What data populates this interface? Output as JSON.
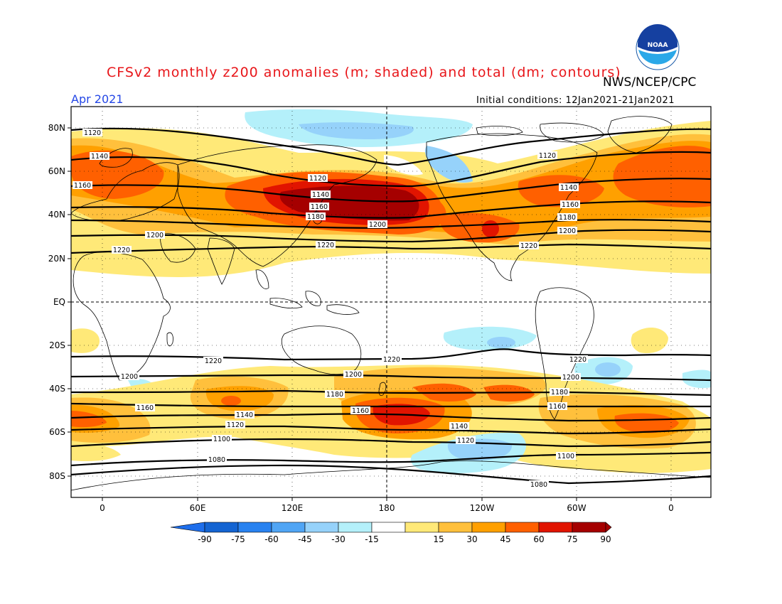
{
  "header": {
    "title": "CFSv2 monthly z200 anomalies (m; shaded) and total (dm; contours)",
    "credit": "NWS/NCEP/CPC",
    "logo_text": "NOAA",
    "month": "Apr 2021",
    "initial_conditions": "Initial conditions: 12Jan2021-21Jan2021"
  },
  "axes": {
    "lat_labels": [
      "80N",
      "60N",
      "40N",
      "20N",
      "EQ",
      "20S",
      "40S",
      "60S",
      "80S"
    ],
    "lon_labels": [
      "0",
      "60E",
      "120E",
      "180",
      "120W",
      "60W",
      "0"
    ]
  },
  "contour_labels": {
    "north": [
      "1120",
      "1140",
      "1160",
      "1120",
      "1140",
      "1160",
      "1180",
      "1200",
      "1200",
      "1220",
      "1220",
      "1120",
      "1140",
      "1160",
      "1180",
      "1200",
      "1220"
    ],
    "south": [
      "1220",
      "1220",
      "1220",
      "1200",
      "1200",
      "1200",
      "1180",
      "1180",
      "1160",
      "1160",
      "1160",
      "1140",
      "1140",
      "1120",
      "1120",
      "1100",
      "1100",
      "1080",
      "1080"
    ]
  },
  "colorbar": {
    "labels": [
      "-90",
      "-75",
      "-60",
      "-45",
      "-30",
      "-15",
      "15",
      "30",
      "45",
      "60",
      "75",
      "90"
    ],
    "colors": [
      "#1464d2",
      "#2882f0",
      "#50a5f5",
      "#96d2fa",
      "#b4f0fa",
      "#ffffff",
      "#ffe978",
      "#ffc03c",
      "#ffa000",
      "#ff6000",
      "#e11400",
      "#a50000"
    ],
    "low_arrow_color": "#1e6eeb",
    "high_arrow_color": "#a50000"
  }
}
